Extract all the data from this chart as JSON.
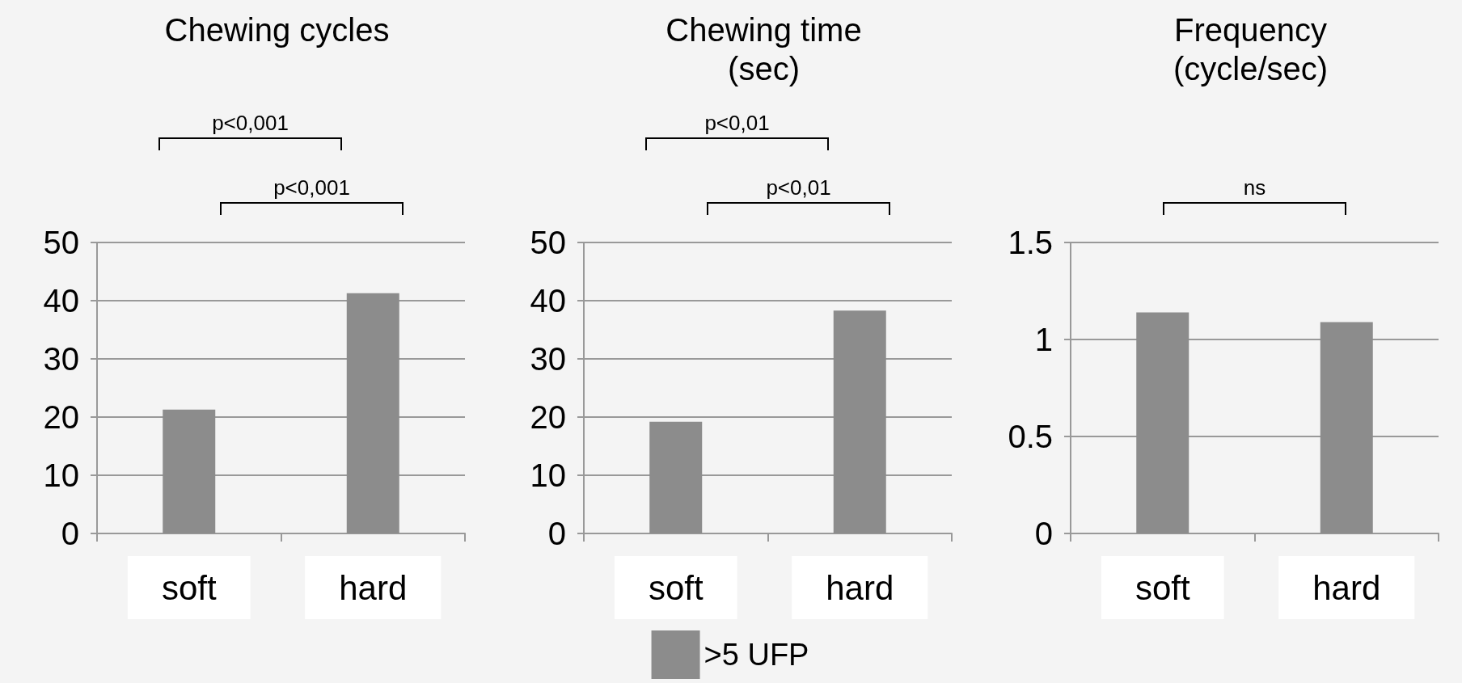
{
  "chart_data": [
    {
      "type": "bar",
      "title": "Chewing cycles",
      "categories": [
        "soft",
        "hard"
      ],
      "series": [
        {
          "color": "#8c8c8c",
          "values": [
            21.3,
            41.3
          ]
        }
      ],
      "ylim": [
        0,
        50
      ],
      "yticks": [
        0,
        10,
        20,
        30,
        40,
        50
      ],
      "grid": "y",
      "legend": false,
      "annotations": [
        "p<0,001",
        "p<0,001"
      ]
    },
    {
      "type": "bar",
      "title": "Chewing time\n(sec)",
      "categories": [
        "soft",
        "hard"
      ],
      "series": [
        {
          "name": ">5 UFP",
          "color": "#8c8c8c",
          "values": [
            19.2,
            38.3
          ]
        }
      ],
      "ylim": [
        0,
        50
      ],
      "yticks": [
        0,
        10,
        20,
        30,
        40,
        50
      ],
      "grid": "y",
      "legend": "bottom",
      "annotations": [
        "p<0,01",
        "p<0,01"
      ]
    },
    {
      "type": "bar",
      "title": "Frequency\n(cycle/sec)",
      "categories": [
        "soft",
        "hard"
      ],
      "series": [
        {
          "color": "#8c8c8c",
          "values": [
            1.14,
            1.09
          ]
        }
      ],
      "ylim": [
        0,
        1.5
      ],
      "yticks": [
        0,
        0.5,
        1,
        1.5
      ],
      "grid": "y",
      "legend": false,
      "annotations": [
        "ns"
      ]
    }
  ]
}
